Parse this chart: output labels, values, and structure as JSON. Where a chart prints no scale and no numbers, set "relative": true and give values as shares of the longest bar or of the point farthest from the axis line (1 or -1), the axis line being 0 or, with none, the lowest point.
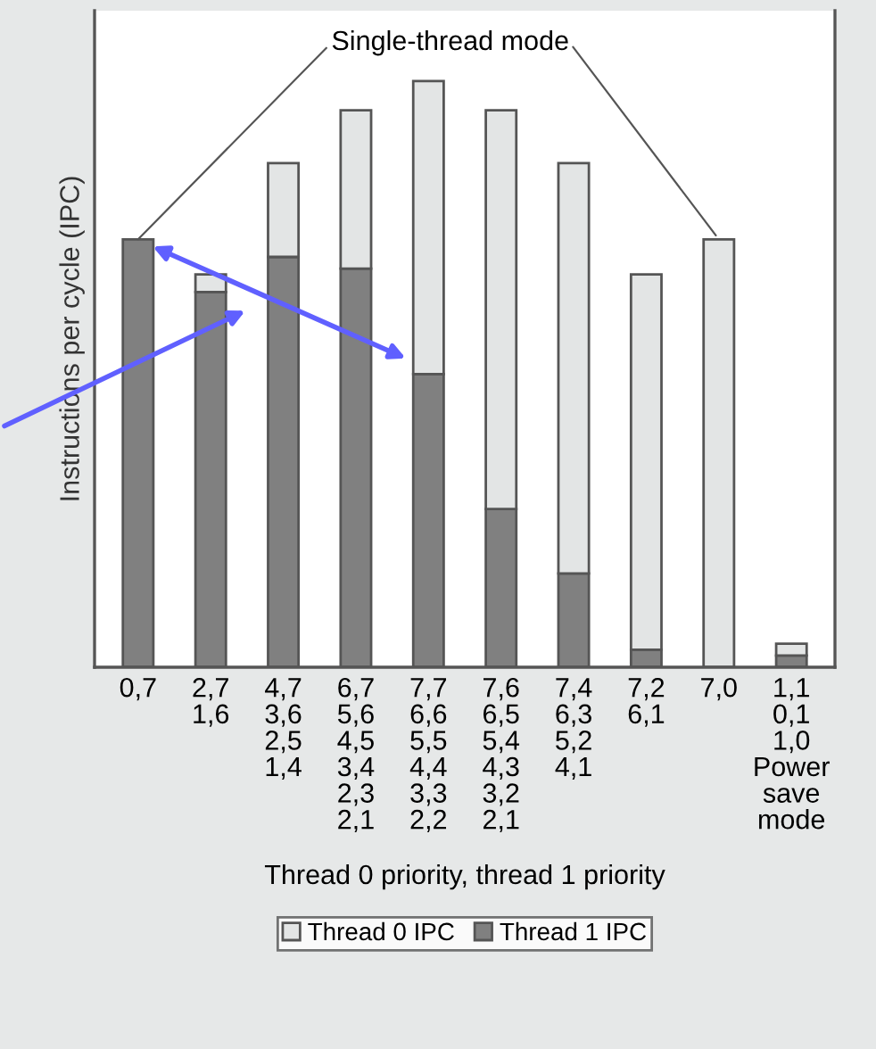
{
  "chart_data": {
    "type": "bar",
    "stacked": true,
    "relative": true,
    "categories": [
      "0,7",
      "2,7\n1,6",
      "4,7\n3,6\n2,5\n1,4",
      "6,7\n5,6\n4,5\n3,4\n2,3\n2,1",
      "7,7\n6,6\n5,5\n4,4\n3,3\n2,2",
      "7,6\n6,5\n5,4\n4,3\n3,2\n2,1",
      "7,4\n6,3\n5,2\n4,1",
      "7,2\n6,1",
      "7,0",
      "1,1\n0,1\n1,0\nPower\nsave\nmode"
    ],
    "series": [
      {
        "name": "Thread 1 IPC",
        "color": "#808080",
        "values": [
          0.73,
          0.64,
          0.7,
          0.68,
          0.5,
          0.27,
          0.16,
          0.03,
          null,
          0.02
        ]
      },
      {
        "name": "Thread 0 IPC",
        "color": "#e3e5e5",
        "values": [
          null,
          0.03,
          0.16,
          0.27,
          0.5,
          0.68,
          0.7,
          0.64,
          0.73,
          0.02
        ]
      }
    ],
    "xlabel": "Thread 0 priority, thread 1 priority",
    "ylabel": "Instructions per cycle (IPC)",
    "annotations": [
      {
        "text": "Single-thread mode",
        "x": "0,7",
        "y": 0.73
      }
    ],
    "legend": "bottom",
    "grid": false
  }
}
